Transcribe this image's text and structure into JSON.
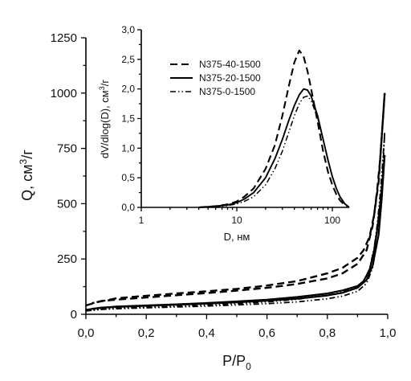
{
  "chart_data": [
    {
      "type": "line",
      "xlabel": "P/P",
      "xlabel_sub": "0",
      "ylabel_prefix": "Q, см",
      "ylabel_sup": "3",
      "ylabel_suffix": "/г",
      "xlim": [
        0.0,
        1.0
      ],
      "ylim": [
        0,
        1250
      ],
      "x_ticks": [
        0.0,
        0.2,
        0.4,
        0.6,
        0.8,
        1.0
      ],
      "x_tick_labels": [
        "0,0",
        "0,2",
        "0,4",
        "0,6",
        "0,8",
        "1,0"
      ],
      "y_ticks": [
        0,
        250,
        500,
        750,
        1000,
        1250
      ],
      "y_tick_labels": [
        "0",
        "250",
        "500",
        "750",
        "1000",
        "1250"
      ],
      "grid": false,
      "series": [
        {
          "name": "N375-40-1500",
          "style": "dash",
          "adsorption": [
            [
              0.0,
              40
            ],
            [
              0.05,
              60
            ],
            [
              0.1,
              66
            ],
            [
              0.2,
              76
            ],
            [
              0.3,
              86
            ],
            [
              0.4,
              96
            ],
            [
              0.5,
              107
            ],
            [
              0.6,
              120
            ],
            [
              0.7,
              137
            ],
            [
              0.8,
              162
            ],
            [
              0.85,
              185
            ],
            [
              0.9,
              228
            ],
            [
              0.93,
              290
            ],
            [
              0.95,
              400
            ],
            [
              0.97,
              600
            ],
            [
              0.98,
              800
            ],
            [
              0.99,
              1000
            ]
          ],
          "desorption": [
            [
              0.99,
              1000
            ],
            [
              0.985,
              900
            ],
            [
              0.975,
              700
            ],
            [
              0.965,
              560
            ],
            [
              0.955,
              450
            ],
            [
              0.94,
              350
            ],
            [
              0.92,
              290
            ],
            [
              0.9,
              255
            ],
            [
              0.85,
              210
            ],
            [
              0.8,
              185
            ],
            [
              0.7,
              150
            ],
            [
              0.6,
              130
            ],
            [
              0.5,
              115
            ],
            [
              0.4,
              104
            ],
            [
              0.3,
              94
            ],
            [
              0.2,
              84
            ],
            [
              0.1,
              72
            ],
            [
              0.02,
              50
            ]
          ]
        },
        {
          "name": "N375-20-1500",
          "style": "solid",
          "adsorption": [
            [
              0.0,
              20
            ],
            [
              0.05,
              30
            ],
            [
              0.1,
              33
            ],
            [
              0.2,
              38
            ],
            [
              0.3,
              43
            ],
            [
              0.4,
              48
            ],
            [
              0.5,
              54
            ],
            [
              0.6,
              61
            ],
            [
              0.7,
              70
            ],
            [
              0.8,
              85
            ],
            [
              0.85,
              97
            ],
            [
              0.9,
              120
            ],
            [
              0.93,
              155
            ],
            [
              0.95,
              220
            ],
            [
              0.97,
              360
            ],
            [
              0.98,
              520
            ],
            [
              0.99,
              720
            ]
          ],
          "desorption": [
            [
              0.99,
              720
            ],
            [
              0.985,
              640
            ],
            [
              0.975,
              500
            ],
            [
              0.965,
              380
            ],
            [
              0.955,
              290
            ],
            [
              0.94,
              200
            ],
            [
              0.92,
              150
            ],
            [
              0.9,
              128
            ],
            [
              0.85,
              108
            ],
            [
              0.8,
              94
            ],
            [
              0.7,
              78
            ],
            [
              0.6,
              66
            ],
            [
              0.5,
              58
            ],
            [
              0.4,
              51
            ],
            [
              0.3,
              45
            ],
            [
              0.2,
              40
            ],
            [
              0.1,
              35
            ],
            [
              0.02,
              25
            ]
          ]
        },
        {
          "name": "N375-0-1500",
          "style": "dashdotdot",
          "adsorption": [
            [
              0.0,
              15
            ],
            [
              0.05,
              22
            ],
            [
              0.1,
              25
            ],
            [
              0.2,
              29
            ],
            [
              0.3,
              33
            ],
            [
              0.4,
              37
            ],
            [
              0.5,
              42
            ],
            [
              0.6,
              48
            ],
            [
              0.7,
              56
            ],
            [
              0.8,
              70
            ],
            [
              0.85,
              82
            ],
            [
              0.9,
              104
            ],
            [
              0.93,
              140
            ],
            [
              0.95,
              210
            ],
            [
              0.97,
              370
            ],
            [
              0.98,
              560
            ],
            [
              0.99,
              820
            ]
          ],
          "desorption": [
            [
              0.99,
              820
            ],
            [
              0.985,
              720
            ],
            [
              0.975,
              540
            ],
            [
              0.965,
              400
            ],
            [
              0.955,
              300
            ],
            [
              0.94,
              205
            ],
            [
              0.92,
              150
            ],
            [
              0.9,
              125
            ],
            [
              0.85,
              100
            ],
            [
              0.8,
              86
            ],
            [
              0.7,
              68
            ],
            [
              0.6,
              56
            ],
            [
              0.5,
              48
            ],
            [
              0.4,
              41
            ],
            [
              0.3,
              36
            ],
            [
              0.2,
              31
            ],
            [
              0.1,
              27
            ],
            [
              0.02,
              19
            ]
          ]
        }
      ]
    },
    {
      "type": "line",
      "xlabel": "D, нм",
      "ylabel_prefix": "dV/dlog(D), см",
      "ylabel_sup": "3",
      "ylabel_suffix": "/г",
      "x_scale": "log",
      "xlim": [
        1,
        150
      ],
      "ylim": [
        0.0,
        3.0
      ],
      "x_ticks": [
        1,
        10,
        100
      ],
      "x_tick_labels": [
        "1",
        "10",
        "100"
      ],
      "y_ticks": [
        0.0,
        0.5,
        1.0,
        1.5,
        2.0,
        2.5,
        3.0
      ],
      "y_tick_labels": [
        "0,0",
        "0,5",
        "1,0",
        "1,5",
        "2,0",
        "2,5",
        "3,0"
      ],
      "legend_position": "top-left",
      "grid": false,
      "series": [
        {
          "name": "N375-40-1500",
          "style": "dash",
          "x": [
            4,
            6,
            8,
            10,
            12,
            15,
            20,
            25,
            30,
            35,
            40,
            45,
            50,
            55,
            60,
            70,
            80,
            90,
            100,
            110,
            120,
            135,
            150
          ],
          "y": [
            0.0,
            0.02,
            0.05,
            0.1,
            0.18,
            0.32,
            0.65,
            1.05,
            1.55,
            2.05,
            2.45,
            2.65,
            2.55,
            2.3,
            2.0,
            1.45,
            0.95,
            0.6,
            0.38,
            0.22,
            0.12,
            0.04,
            0.0
          ]
        },
        {
          "name": "N375-20-1500",
          "style": "solid",
          "x": [
            4,
            6,
            8,
            10,
            12,
            15,
            20,
            25,
            30,
            35,
            40,
            45,
            50,
            55,
            60,
            70,
            80,
            90,
            100,
            110,
            120,
            135,
            150
          ],
          "y": [
            0.0,
            0.02,
            0.04,
            0.08,
            0.14,
            0.25,
            0.5,
            0.82,
            1.15,
            1.47,
            1.72,
            1.9,
            2.0,
            1.98,
            1.88,
            1.55,
            1.15,
            0.8,
            0.52,
            0.32,
            0.18,
            0.06,
            0.0
          ]
        },
        {
          "name": "N375-0-1500",
          "style": "dashdotdot",
          "x": [
            4,
            6,
            8,
            10,
            12,
            15,
            20,
            25,
            30,
            35,
            40,
            45,
            50,
            55,
            60,
            70,
            80,
            90,
            100,
            110,
            120,
            135,
            150
          ],
          "y": [
            0.0,
            0.01,
            0.03,
            0.06,
            0.1,
            0.18,
            0.38,
            0.65,
            0.95,
            1.27,
            1.55,
            1.75,
            1.86,
            1.88,
            1.8,
            1.52,
            1.15,
            0.8,
            0.52,
            0.32,
            0.18,
            0.06,
            0.0
          ]
        }
      ]
    }
  ]
}
